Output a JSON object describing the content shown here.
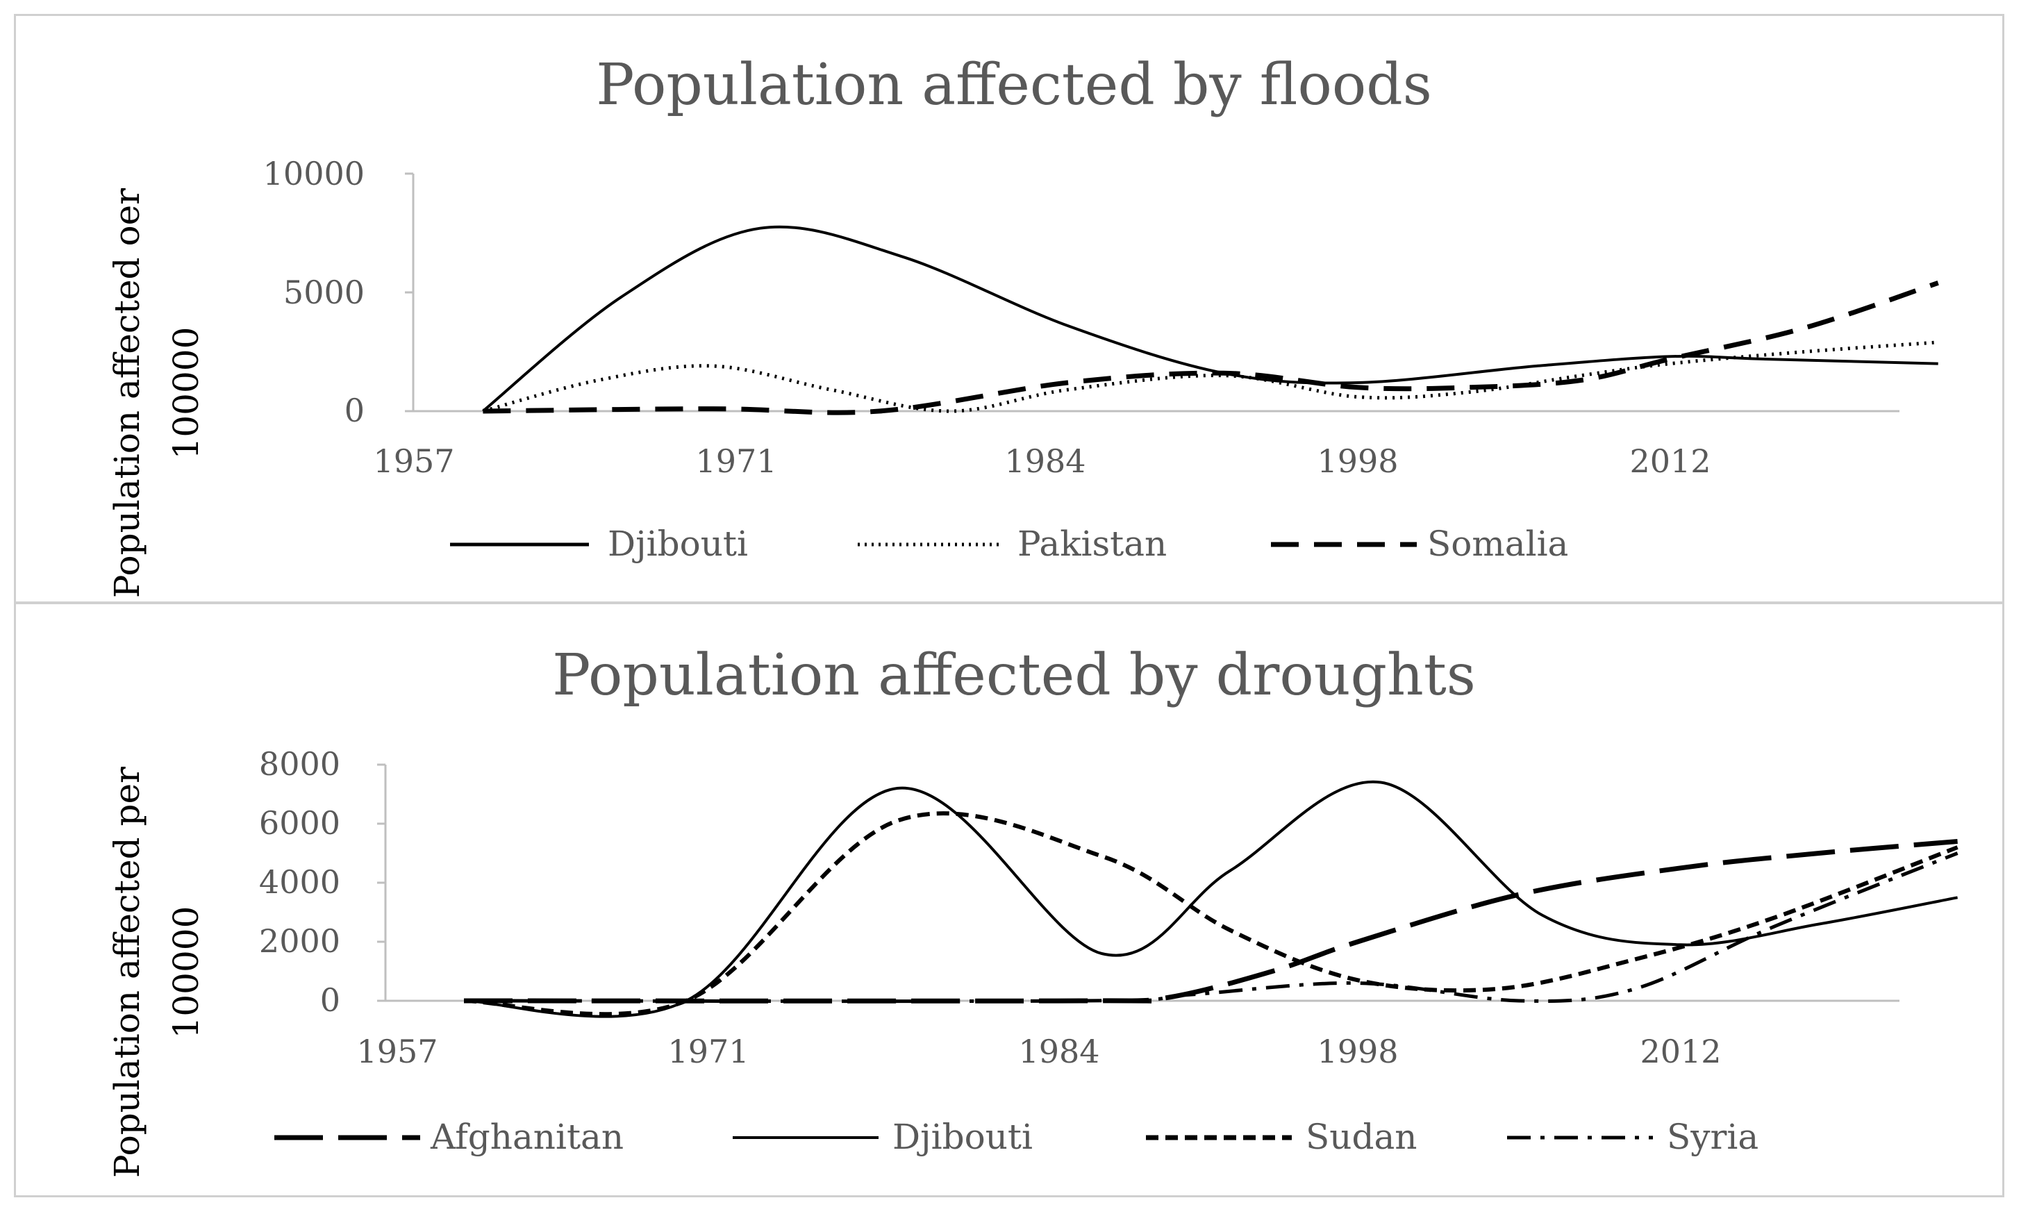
{
  "chart_data": [
    {
      "type": "line",
      "title": "Population affected by floods",
      "xlabel": "",
      "ylabel": [
        "Population affected oer",
        "100000"
      ],
      "x_ticks": [
        "1957",
        "1971",
        "1984",
        "1998",
        "2012"
      ],
      "y_ticks": [
        "10000",
        "5000",
        "0"
      ],
      "xlim": [
        1957,
        2030
      ],
      "ylim": [
        0,
        10000
      ],
      "legend_position": "bottom",
      "series": [
        {
          "name": "Djibouti",
          "style": "solid",
          "x": [
            1960,
            1966,
            1972,
            1978,
            1985,
            1992,
            1998,
            2006,
            2012,
            2016,
            2024
          ],
          "values": [
            0,
            4800,
            7700,
            6500,
            3600,
            1600,
            1200,
            1900,
            2300,
            2200,
            2000
          ]
        },
        {
          "name": "Pakistan",
          "style": "dotted",
          "x": [
            1960,
            1965,
            1970,
            1975,
            1980,
            1985,
            1992,
            1998,
            2003,
            2008,
            2012,
            2018,
            2024
          ],
          "values": [
            0,
            1300,
            1900,
            900,
            0,
            900,
            1500,
            600,
            800,
            1500,
            2000,
            2500,
            2900
          ]
        },
        {
          "name": "Somalia",
          "style": "dashed",
          "x": [
            1960,
            1970,
            1977,
            1985,
            1992,
            1998,
            2003,
            2008,
            2012,
            2018,
            2024
          ],
          "values": [
            0,
            100,
            0,
            1200,
            1600,
            1000,
            1000,
            1300,
            2200,
            3500,
            5400
          ]
        }
      ]
    },
    {
      "type": "line",
      "title": "Population affected by droughts",
      "xlabel": "",
      "ylabel": [
        "Population affected per",
        "100000"
      ],
      "x_ticks": [
        "1957",
        "1971",
        "1984",
        "1998",
        "2012"
      ],
      "y_ticks": [
        "8000",
        "6000",
        "4000",
        "2000",
        "0"
      ],
      "xlim": [
        1957,
        2030
      ],
      "ylim": [
        0,
        8000
      ],
      "legend_position": "bottom",
      "series": [
        {
          "name": "Afghanitan",
          "style": "long-dash",
          "x": [
            1960,
            1985,
            1989,
            1994,
            1998,
            2005,
            2012,
            2018,
            2024
          ],
          "values": [
            0,
            0,
            100,
            1000,
            2000,
            3600,
            4500,
            5000,
            5400
          ]
        },
        {
          "name": "Djibouti",
          "style": "solid",
          "x": [
            1960,
            1970,
            1978,
            1986,
            1992,
            1999,
            2006,
            2012,
            2018,
            2024
          ],
          "values": [
            0,
            0,
            7200,
            1600,
            4400,
            7400,
            2900,
            1900,
            2600,
            3500
          ]
        },
        {
          "name": "Sudan",
          "style": "short-dash",
          "x": [
            1960,
            1970,
            1978,
            1986,
            1992,
            1998,
            2004,
            2010,
            2016,
            2024
          ],
          "values": [
            0,
            0,
            6100,
            4900,
            2400,
            700,
            400,
            1400,
            2800,
            5200
          ]
        },
        {
          "name": "Syria",
          "style": "dash-dot",
          "x": [
            1960,
            1985,
            1990,
            1998,
            2005,
            2010,
            2016,
            2024
          ],
          "values": [
            0,
            0,
            200,
            600,
            0,
            400,
            2500,
            5000
          ]
        }
      ]
    }
  ]
}
